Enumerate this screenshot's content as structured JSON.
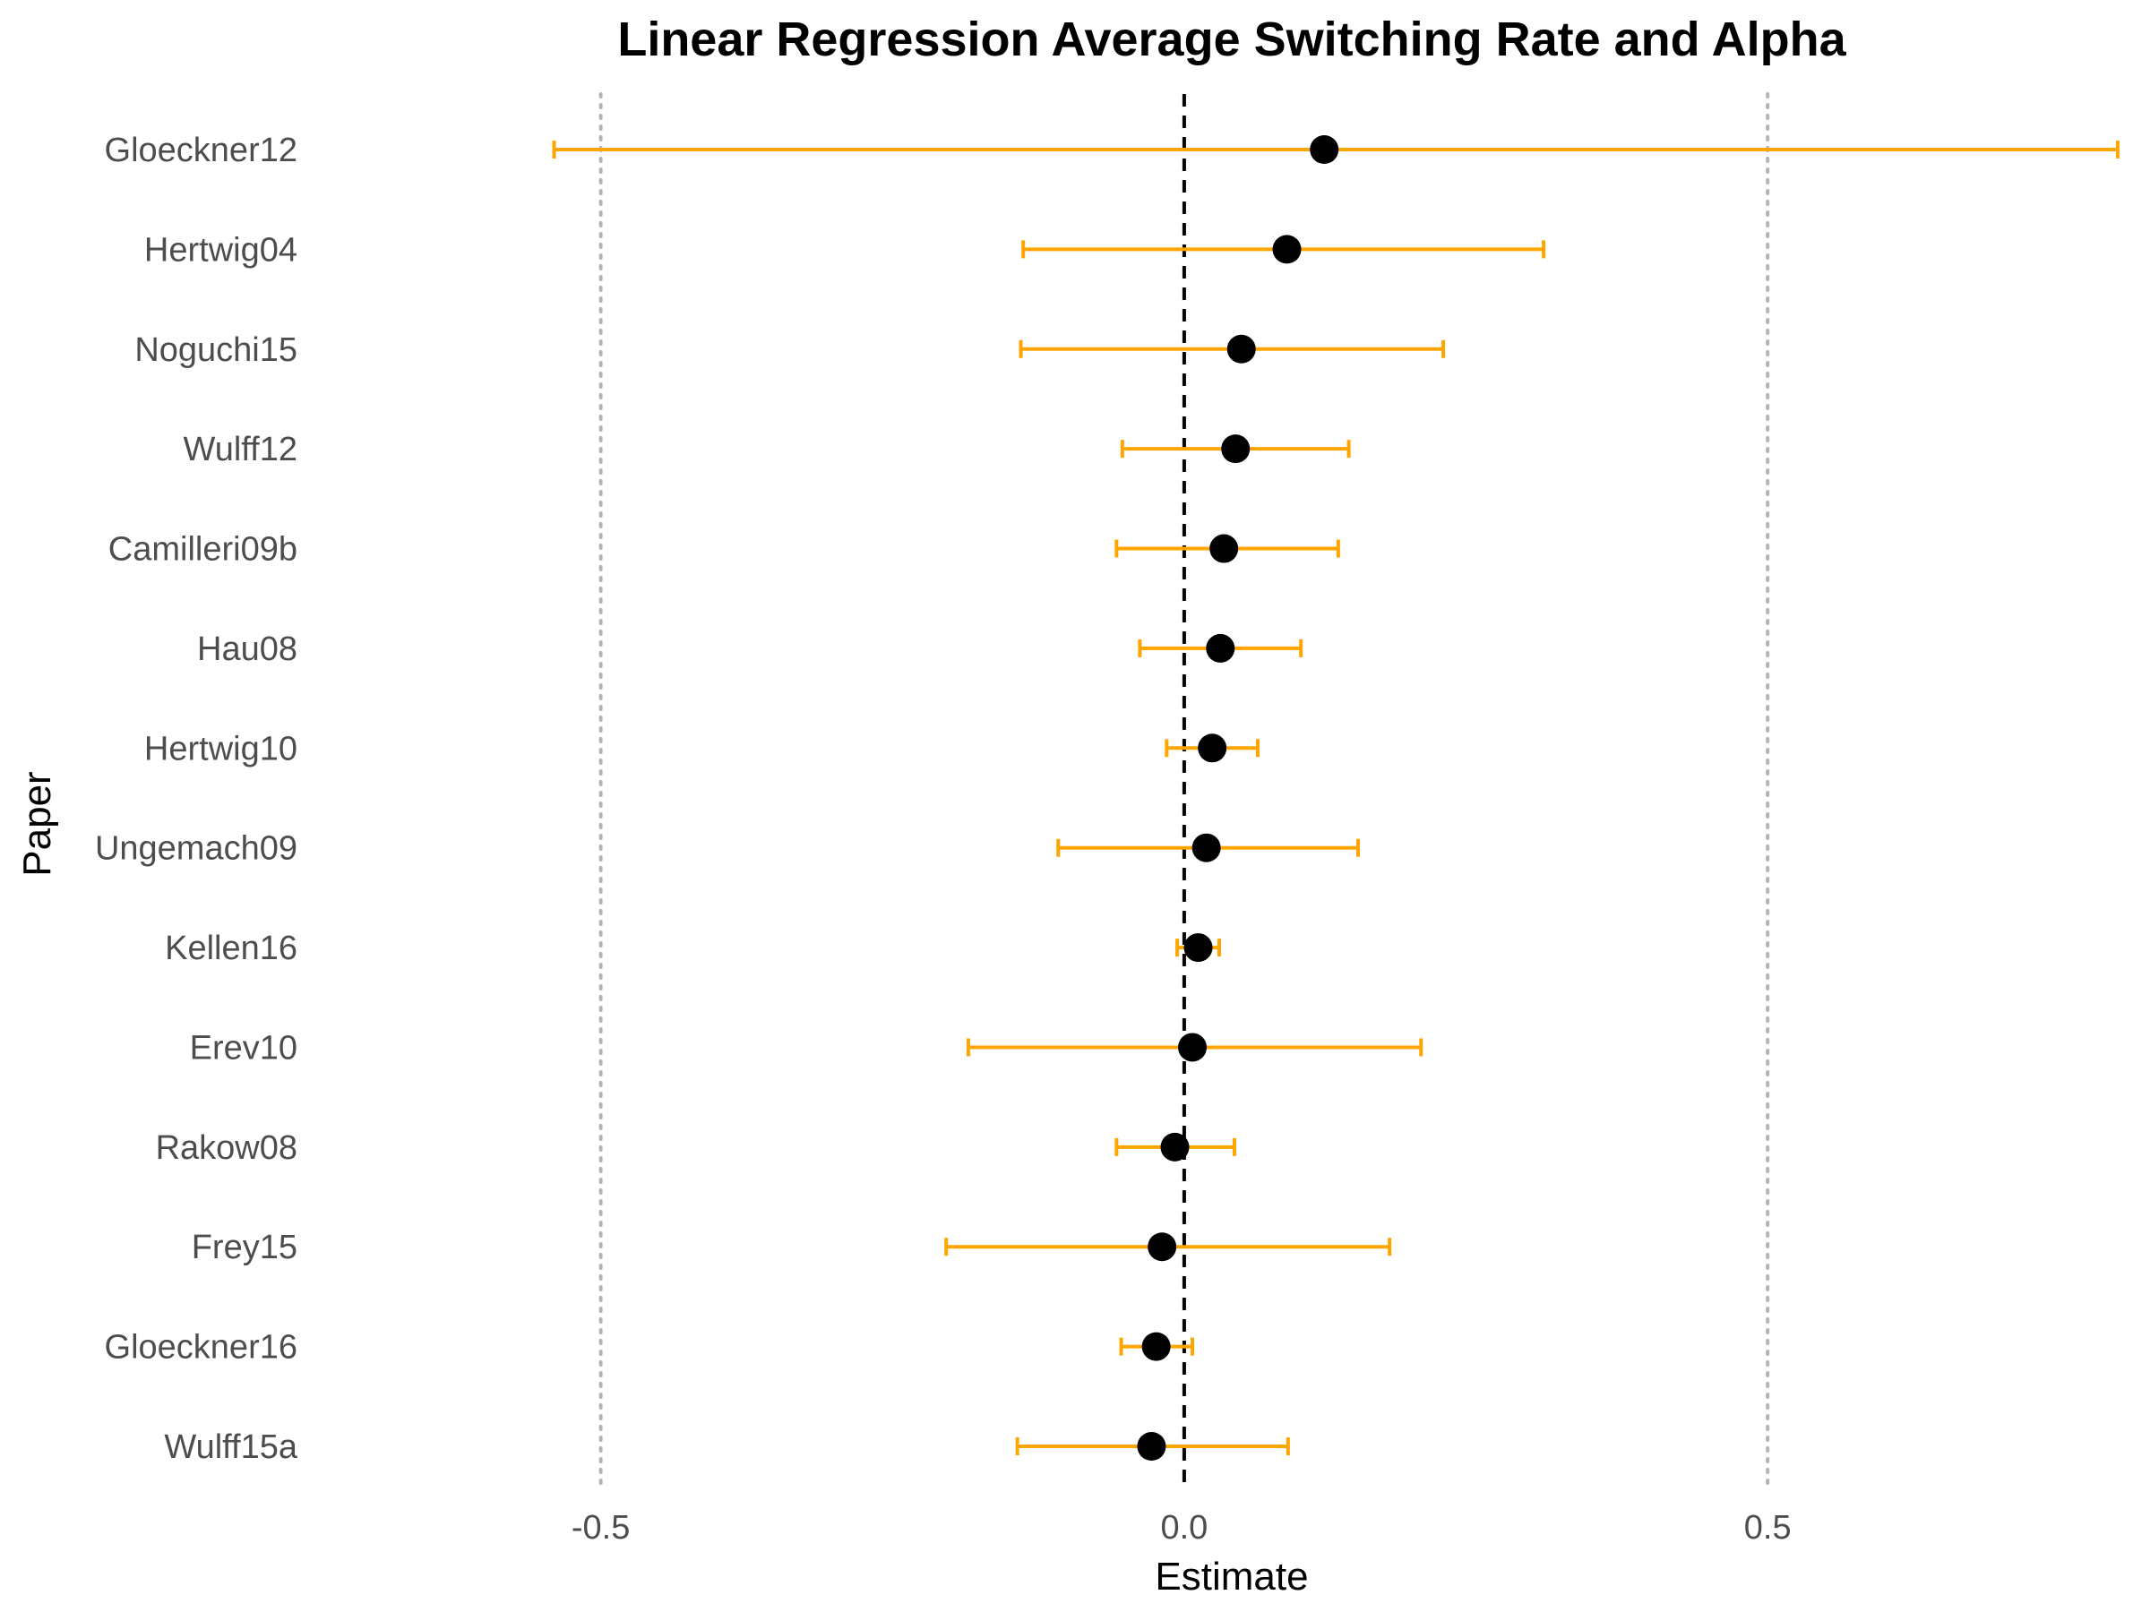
{
  "chart_data": {
    "type": "forest",
    "title": "Linear Regression Average Switching Rate and Alpha",
    "xlabel": "Estimate",
    "ylabel": "Paper",
    "xlim": [
      -0.75,
      0.82
    ],
    "x_ticks": [
      -0.5,
      0.0,
      0.5
    ],
    "x_tick_labels": [
      "-0.5",
      "0.0",
      "0.5"
    ],
    "reference_lines": {
      "zero": 0.0,
      "dotted": [
        -0.5,
        0.5
      ]
    },
    "grid": false,
    "legend": "none",
    "colors": {
      "interval": "#FFA500",
      "point": "#000000",
      "zero_line": "#000000",
      "dotted_line": "#b3b3b3"
    },
    "papers": [
      {
        "name": "Gloeckner12",
        "estimate": 0.12,
        "lower": -0.54,
        "upper": 0.8
      },
      {
        "name": "Hertwig04",
        "estimate": 0.088,
        "lower": -0.138,
        "upper": 0.308
      },
      {
        "name": "Noguchi15",
        "estimate": 0.049,
        "lower": -0.14,
        "upper": 0.222
      },
      {
        "name": "Wulff12",
        "estimate": 0.044,
        "lower": -0.053,
        "upper": 0.141
      },
      {
        "name": "Camilleri09b",
        "estimate": 0.034,
        "lower": -0.058,
        "upper": 0.132
      },
      {
        "name": "Hau08",
        "estimate": 0.031,
        "lower": -0.038,
        "upper": 0.1
      },
      {
        "name": "Hertwig10",
        "estimate": 0.024,
        "lower": -0.015,
        "upper": 0.063
      },
      {
        "name": "Ungemach09",
        "estimate": 0.019,
        "lower": -0.108,
        "upper": 0.149
      },
      {
        "name": "Kellen16",
        "estimate": 0.012,
        "lower": -0.006,
        "upper": 0.03
      },
      {
        "name": "Erev10",
        "estimate": 0.007,
        "lower": -0.185,
        "upper": 0.203
      },
      {
        "name": "Rakow08",
        "estimate": -0.008,
        "lower": -0.058,
        "upper": 0.043
      },
      {
        "name": "Frey15",
        "estimate": -0.019,
        "lower": -0.204,
        "upper": 0.176
      },
      {
        "name": "Gloeckner16",
        "estimate": -0.024,
        "lower": -0.054,
        "upper": 0.007
      },
      {
        "name": "Wulff15a",
        "estimate": -0.028,
        "lower": -0.143,
        "upper": 0.089
      }
    ]
  }
}
